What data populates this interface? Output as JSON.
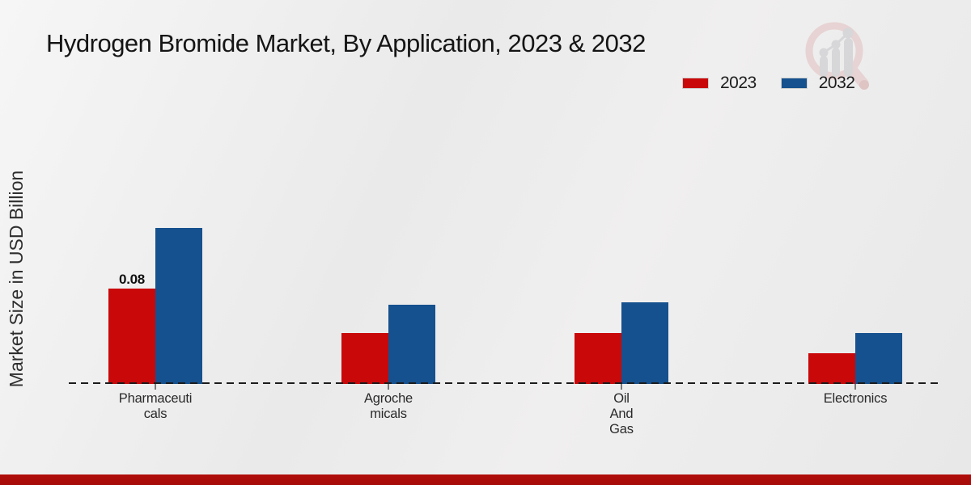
{
  "title": "Hydrogen Bromide Market, By Application, 2023 & 2032",
  "y_axis_label": "Market Size in USD Billion",
  "legend": [
    {
      "label": "2023",
      "color": "#c9080a"
    },
    {
      "label": "2032",
      "color": "#15518e"
    }
  ],
  "colors": {
    "bar_2023": "#c9080a",
    "bar_2032": "#15518e",
    "footer_stripe": "#b00d0a",
    "axis_line": "#1c1c1c"
  },
  "watermark_icon": "magnifier-growth-chart-logo",
  "chart_data": {
    "type": "bar",
    "title": "Hydrogen Bromide Market, By Application, 2023 & 2032",
    "ylabel": "Market Size in USD Billion",
    "xlabel": "",
    "categories": [
      "Pharmaceuticals",
      "Agrochemicals",
      "Oil And Gas",
      "Electronics"
    ],
    "category_label_lines": [
      [
        "Pharmaceuti",
        "cals"
      ],
      [
        "Agroche",
        "micals"
      ],
      [
        "Oil",
        "And",
        "Gas"
      ],
      [
        "Electronics"
      ]
    ],
    "series": [
      {
        "name": "2023",
        "color": "#c9080a",
        "values": [
          0.08,
          0.043,
          0.043,
          0.026
        ]
      },
      {
        "name": "2032",
        "color": "#15518e",
        "values": [
          0.131,
          0.067,
          0.069,
          0.043
        ]
      }
    ],
    "data_labels": [
      {
        "series_index": 0,
        "category_index": 0,
        "text": "0.08"
      }
    ],
    "ylim": [
      0,
      0.14
    ],
    "grid": false,
    "baseline_style": "dashed",
    "legend_position": "top-right"
  }
}
